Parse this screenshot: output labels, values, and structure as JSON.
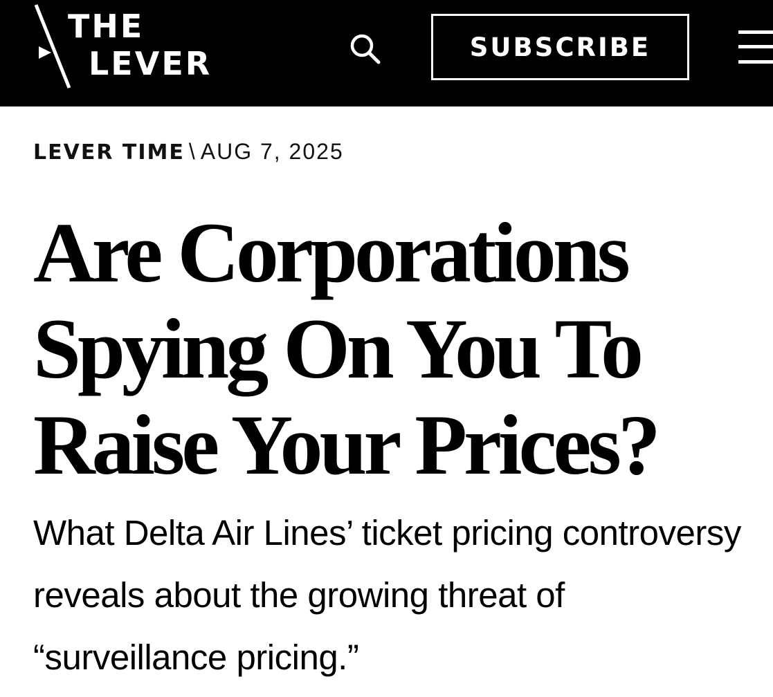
{
  "header": {
    "logo_line1": "THE",
    "logo_line2": "LEVER",
    "subscribe_label": "SUBSCRIBE",
    "background": "#000000",
    "foreground": "#ffffff"
  },
  "icons": {
    "search": "search-icon",
    "menu": "hamburger-menu-icon",
    "logo": "lever-slash-logo-icon"
  },
  "article": {
    "section": "LEVER TIME",
    "separator": "\\",
    "date": "AUG 7, 2025",
    "headline": "Are Corporations Spying On You To Raise Your Prices?",
    "dek": "What Delta Air Lines’ ticket pricing controversy reveals about the growing threat of “surveillance pricing.”"
  }
}
